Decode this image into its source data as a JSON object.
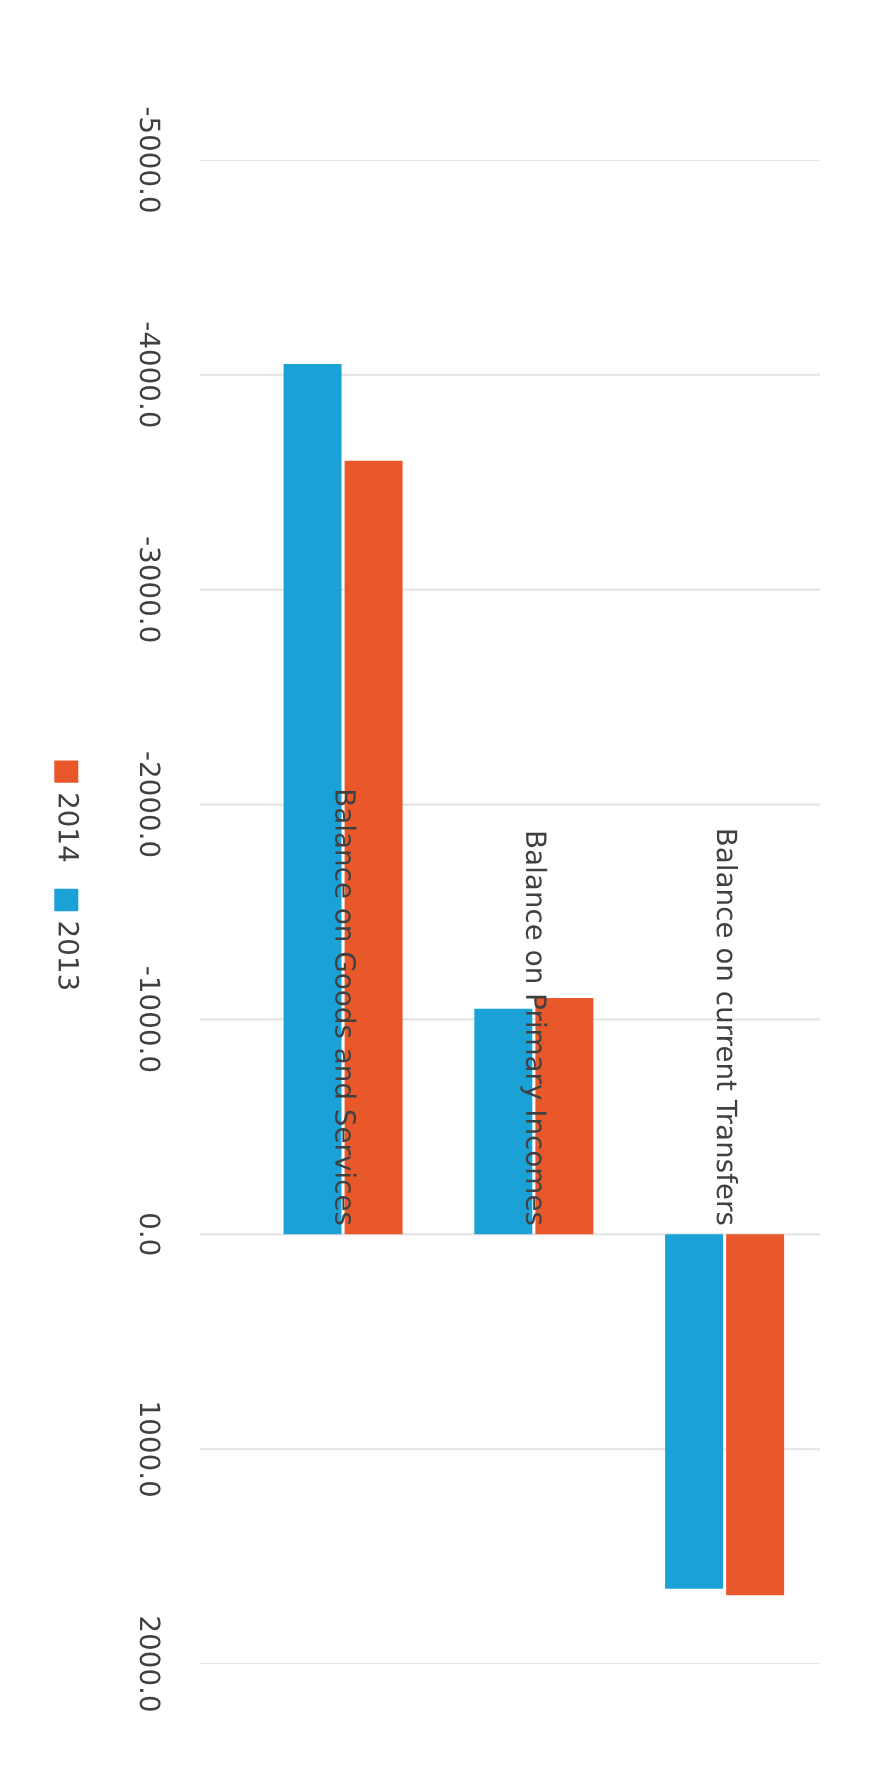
{
  "chart_data": {
    "type": "bar",
    "categories": [
      "Balance on Goods and Services",
      "Balance on Primary Incomes",
      "Balance on current Transfers"
    ],
    "series": [
      {
        "name": "2013",
        "color": "#1ba1d6",
        "values": [
          -4050,
          -1050,
          1650
        ]
      },
      {
        "name": "2014",
        "color": "#e8582a",
        "values": [
          -3600,
          -1100,
          1680
        ]
      }
    ],
    "ylim": [
      2000,
      -5000
    ],
    "yticks": [
      {
        "value": -5000,
        "label": "-5000.0"
      },
      {
        "value": -4000,
        "label": "-4000.0"
      },
      {
        "value": -3000,
        "label": "-3000.0"
      },
      {
        "value": -2000,
        "label": "-2000.0"
      },
      {
        "value": -1000,
        "label": "-1000.0"
      },
      {
        "value": 0,
        "label": "0.0"
      },
      {
        "value": 1000,
        "label": "1000.0"
      },
      {
        "value": 2000,
        "label": "2000.0"
      }
    ],
    "grid": "y",
    "legend": "left"
  }
}
